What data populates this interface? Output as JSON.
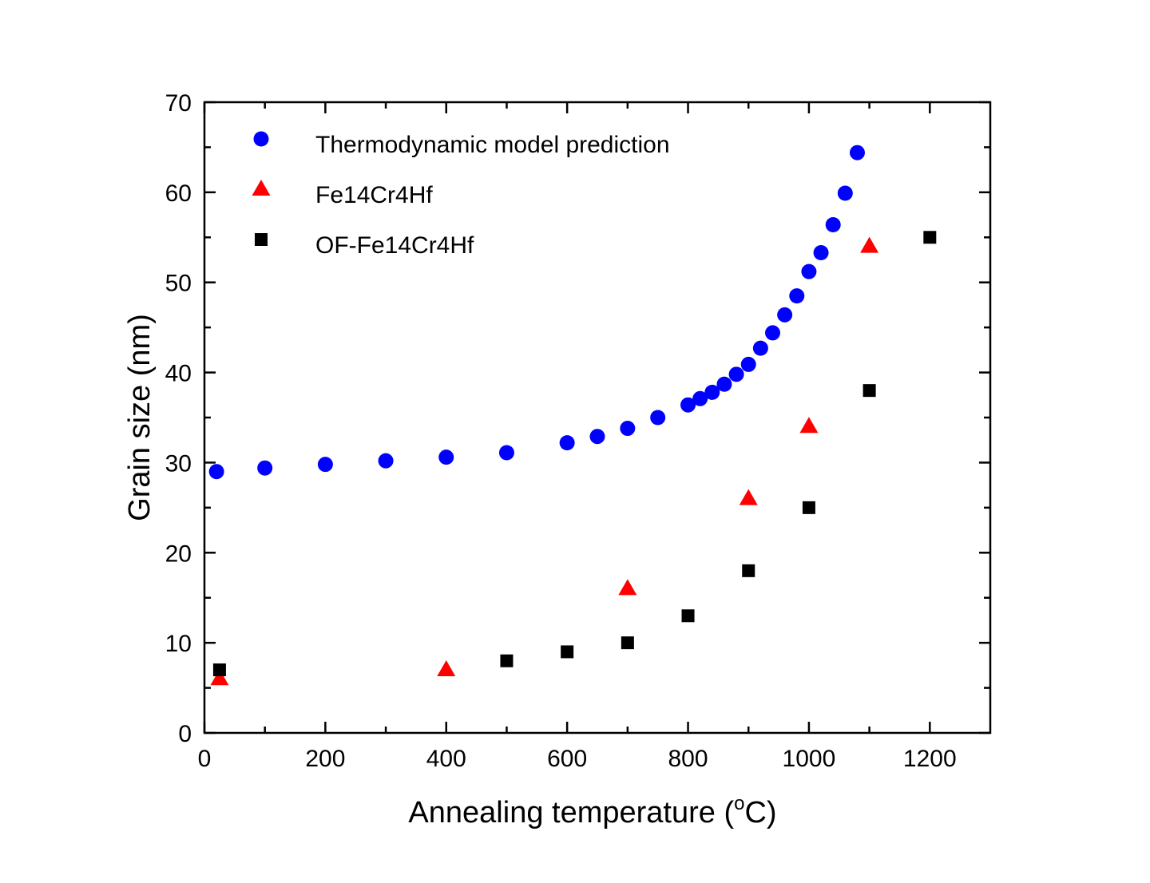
{
  "chart_data": {
    "type": "scatter",
    "title": "",
    "xlabel": "Annealing temperature (",
    "xlabel_sup": "o",
    "xlabel_end": "C)",
    "ylabel": "Grain size (nm)",
    "xlim": [
      0,
      1300
    ],
    "ylim": [
      0,
      70
    ],
    "xticks": [
      0,
      200,
      400,
      600,
      800,
      1000,
      1200
    ],
    "yticks": [
      0,
      10,
      20,
      30,
      40,
      50,
      60,
      70
    ],
    "grid": false,
    "legend_position": "top-left",
    "series": [
      {
        "name": "Thermodynamic model prediction",
        "marker": "circle",
        "color": "#0000ff",
        "x": [
          20,
          100,
          200,
          300,
          400,
          500,
          600,
          650,
          700,
          750,
          800,
          820,
          840,
          860,
          880,
          900,
          920,
          940,
          960,
          980,
          1000,
          1020,
          1040,
          1060,
          1080
        ],
        "y": [
          29.0,
          29.4,
          29.8,
          30.2,
          30.6,
          31.1,
          32.2,
          32.9,
          33.8,
          35.0,
          36.4,
          37.1,
          37.8,
          38.7,
          39.8,
          40.9,
          42.7,
          44.4,
          46.4,
          48.5,
          51.2,
          53.3,
          56.4,
          59.9,
          64.4
        ]
      },
      {
        "name": "Fe14Cr4Hf",
        "marker": "triangle",
        "color": "#ff0000",
        "x": [
          25,
          400,
          700,
          900,
          1000,
          1100
        ],
        "y": [
          6,
          7,
          16,
          26,
          34,
          54
        ]
      },
      {
        "name": "OF-Fe14Cr4Hf",
        "marker": "square",
        "color": "#000000",
        "x": [
          25,
          500,
          600,
          700,
          800,
          900,
          1000,
          1100,
          1200
        ],
        "y": [
          7,
          8,
          9,
          10,
          13,
          18,
          25,
          38,
          55
        ]
      }
    ]
  }
}
